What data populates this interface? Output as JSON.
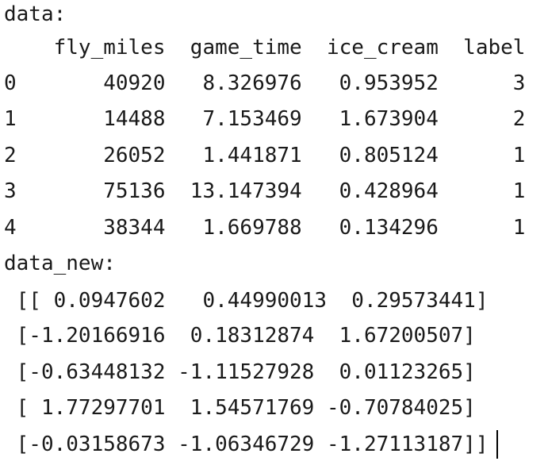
{
  "console": {
    "lines": [
      "data:",
      "    fly_miles  game_time  ice_cream  label",
      "0       40920   8.326976   0.953952      3",
      "1       14488   7.153469   1.673904      2",
      "2       26052   1.441871   0.805124      1",
      "3       75136  13.147394   0.428964      1",
      "4       38344   1.669788   0.134296      1",
      "data_new:",
      " [[ 0.0947602   0.44990013  0.29573441]",
      " [-1.20166916  0.18312874  1.67200507]",
      " [-0.63448132 -1.11527928  0.01123265]",
      " [ 1.77297701  1.54571769 -0.70784025]",
      " [-0.03158673 -1.06346729 -1.27113187]]"
    ]
  }
}
